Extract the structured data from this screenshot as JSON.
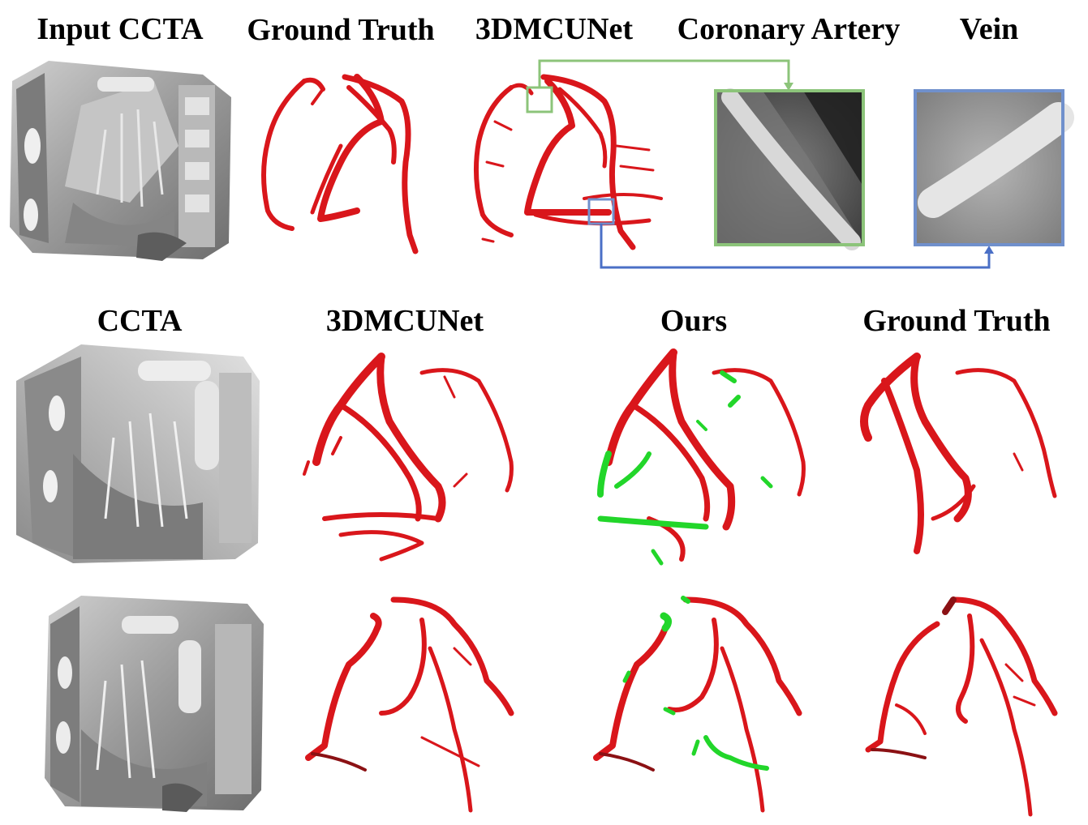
{
  "figure": {
    "top_row": {
      "headings": [
        "Input CCTA",
        "Ground Truth",
        "3DMCUNet",
        "Coronary Artery",
        "Vein"
      ],
      "callout_colors": {
        "coronary_artery": "#8cc47a",
        "vein": "#7090cc"
      }
    },
    "bottom_rows": {
      "headings": [
        "CCTA",
        "3DMCUNet",
        "Ours",
        "Ground Truth"
      ]
    },
    "colors": {
      "vessel": "#d9161b",
      "extra_vessel": "#22d62a",
      "ct_gray": "#9a9a9a"
    }
  }
}
